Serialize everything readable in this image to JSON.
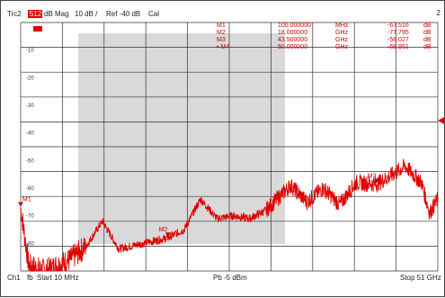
{
  "header": {
    "trace": "Trc2",
    "sparam": "S12",
    "format": "dB Mag",
    "scale": "10 dB /",
    "ref": "Ref -40 dB",
    "cal": "Cal",
    "channel_index": "2",
    "sel_indicator": "■■"
  },
  "markers": [
    {
      "name": "M1",
      "freq": "100.000000",
      "unit": "MHz",
      "value": "-67.516",
      "vunit": "dB"
    },
    {
      "name": "M2",
      "freq": "18.000000",
      "unit": "GHz",
      "value": "-77.795",
      "vunit": "dB"
    },
    {
      "name": "M3",
      "freq": "43.500000",
      "unit": "GHz",
      "value": "-58.027",
      "vunit": "dB"
    },
    {
      "name": "• M4",
      "freq": "50.000000",
      "unit": "GHz",
      "value": "-68.951",
      "vunit": "dB"
    }
  ],
  "plot_markers": [
    "M1",
    "M2",
    "M3"
  ],
  "y_ticks": [
    "-10",
    "-20",
    "-30",
    "-40",
    "-50",
    "-60",
    "-70",
    "-80"
  ],
  "footer": {
    "channel": "Ch1",
    "fb": "fb",
    "start": "Start  10 MHz",
    "power": "Pb  -5 dBm",
    "stop": "Stop  51 GHz"
  },
  "colors": {
    "trace": "#e00000",
    "grid": "#333333",
    "shade": "#d9d9d9",
    "ref_marker": "#e00000"
  },
  "chart_data": {
    "type": "line",
    "x_range_ghz": [
      0.01,
      51
    ],
    "ylim": [
      -90,
      0
    ],
    "ref_level": -40,
    "series": [
      {
        "x": [
          0.01,
          1,
          3,
          6,
          8,
          10,
          12,
          15,
          18,
          20,
          22,
          24,
          26,
          28,
          30,
          33,
          35,
          37,
          39,
          41,
          43.5,
          45,
          47,
          49,
          50,
          51
        ],
        "values": [
          -67,
          -88,
          -90,
          -86,
          -81,
          -72,
          -82,
          -80,
          -78,
          -75,
          -64,
          -71,
          -70,
          -71,
          -68,
          -59,
          -65,
          -60,
          -66,
          -58,
          -58.5,
          -56,
          -52,
          -58,
          -69,
          -64
        ]
      }
    ]
  }
}
